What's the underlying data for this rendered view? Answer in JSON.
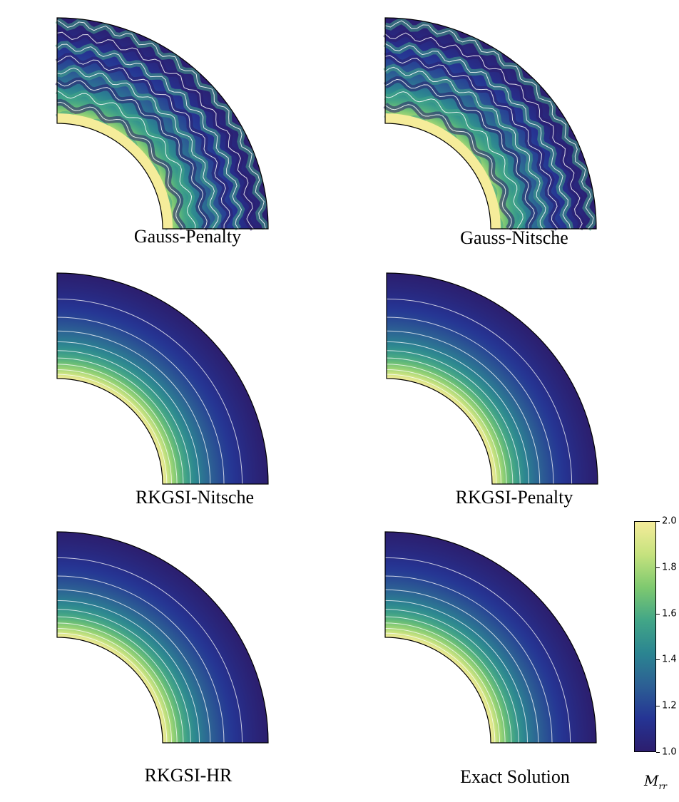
{
  "chart_data": {
    "type": "heatmap",
    "quantity": "M_rr",
    "panels": [
      {
        "caption": "Gauss-Penalty",
        "pattern": "oscillatory"
      },
      {
        "caption": "Gauss-Nitsche",
        "pattern": "oscillatory"
      },
      {
        "caption": "RKGSI-Nitsche",
        "pattern": "smooth"
      },
      {
        "caption": "RKGSI-Penalty",
        "pattern": "smooth"
      },
      {
        "caption": "RKGSI-HR",
        "pattern": "smooth"
      },
      {
        "caption": "Exact Solution",
        "pattern": "smooth"
      }
    ],
    "colorbar": {
      "label_symbol": "M",
      "label_subscript": "rr",
      "range": [
        1.0,
        2.0
      ],
      "ticks": [
        "1.0",
        "1.2",
        "1.4",
        "1.6",
        "1.8",
        "2.0"
      ],
      "tick_values": [
        1.0,
        1.2,
        1.4,
        1.6,
        1.8,
        2.0
      ],
      "colormap": [
        "#2c1e6e",
        "#253494",
        "#2c5f94",
        "#2b8591",
        "#42a687",
        "#7ec96f",
        "#c5e27e",
        "#f5ec9a"
      ]
    },
    "domain_geometry": {
      "shape": "quarter-annulus",
      "inner_radius_ratio": 0.5
    },
    "contour_levels": [
      1.1,
      1.2,
      1.3,
      1.4,
      1.5,
      1.6,
      1.7,
      1.8,
      1.9
    ]
  }
}
